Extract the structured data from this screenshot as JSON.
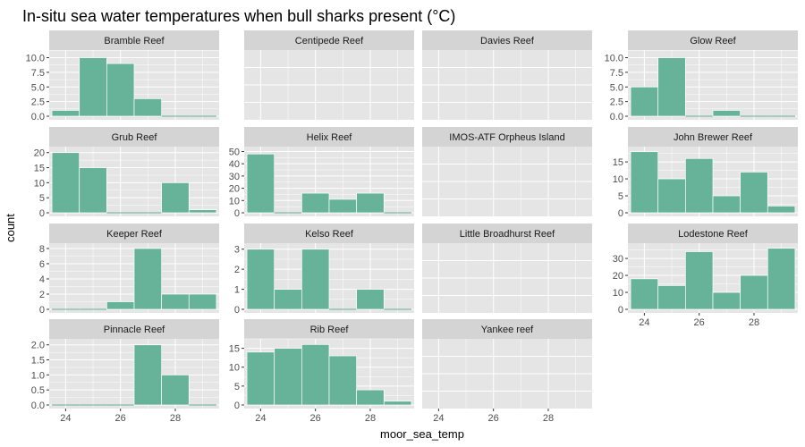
{
  "chart_data": {
    "type": "bar",
    "title": "In-situ sea water temperatures when bull sharks present (°C)",
    "xlabel": "moor_sea_temp",
    "ylabel": "count",
    "xlim": [
      23.4,
      29.6
    ],
    "x_ticks": [
      24,
      26,
      28
    ],
    "bin_edges": [
      23.5,
      24.5,
      25.5,
      26.5,
      27.5,
      28.5,
      29.5
    ],
    "grid": "on",
    "bar_color": "#66b39a",
    "panel_background": "#e5e5e5",
    "strip_background": "#d4d4d4",
    "panels": [
      {
        "name": "Bramble Reef",
        "ylim": [
          0,
          11.3
        ],
        "y_ticks": [
          "0.0",
          "2.5",
          "5.0",
          "7.5",
          "10.0"
        ],
        "values": [
          1,
          10,
          9,
          3,
          0,
          0
        ],
        "show_x_ticks": false
      },
      {
        "name": "Centipede Reef",
        "ylim": null,
        "y_ticks": [],
        "values": [],
        "show_x_ticks": false
      },
      {
        "name": "Davies Reef",
        "ylim": null,
        "y_ticks": [],
        "values": [],
        "show_x_ticks": false
      },
      {
        "name": "Glow Reef",
        "ylim": [
          0,
          11.3
        ],
        "y_ticks": [
          "0.0",
          "2.5",
          "5.0",
          "7.5",
          "10.0"
        ],
        "values": [
          5,
          10,
          0,
          1,
          0,
          0
        ],
        "show_x_ticks": false
      },
      {
        "name": "Grub Reef",
        "ylim": [
          0,
          22
        ],
        "y_ticks": [
          "0",
          "5",
          "10",
          "15",
          "20"
        ],
        "values": [
          20,
          15,
          0,
          0,
          10,
          1
        ],
        "show_x_ticks": false
      },
      {
        "name": "Helix Reef",
        "ylim": [
          0,
          54
        ],
        "y_ticks": [
          "0",
          "10",
          "20",
          "30",
          "40",
          "50"
        ],
        "values": [
          48,
          0,
          16,
          11,
          16,
          0
        ],
        "show_x_ticks": false
      },
      {
        "name": "IMOS-ATF Orpheus Island",
        "ylim": null,
        "y_ticks": [],
        "values": [],
        "show_x_ticks": false
      },
      {
        "name": "John Brewer Reef",
        "ylim": [
          0,
          19.5
        ],
        "y_ticks": [
          "0",
          "5",
          "10",
          "15"
        ],
        "values": [
          18,
          10,
          16,
          5,
          12,
          2
        ],
        "show_x_ticks": false
      },
      {
        "name": "Keeper Reef",
        "ylim": [
          0,
          8.7
        ],
        "y_ticks": [
          "0",
          "2",
          "4",
          "6",
          "8"
        ],
        "values": [
          0,
          0,
          1,
          8,
          2,
          2
        ],
        "show_x_ticks": false
      },
      {
        "name": "Kelso Reef",
        "ylim": [
          0,
          3.3
        ],
        "y_ticks": [
          "0",
          "1",
          "2",
          "3"
        ],
        "values": [
          3,
          1,
          3,
          0,
          1,
          0
        ],
        "show_x_ticks": false
      },
      {
        "name": "Little Broadhurst Reef",
        "ylim": null,
        "y_ticks": [],
        "values": [],
        "show_x_ticks": false
      },
      {
        "name": "Lodestone Reef",
        "ylim": [
          0,
          39
        ],
        "y_ticks": [
          "0",
          "10",
          "20",
          "30"
        ],
        "values": [
          18,
          14,
          34,
          10,
          20,
          36
        ],
        "show_x_ticks": true
      },
      {
        "name": "Pinnacle Reef",
        "ylim": [
          0,
          2.2
        ],
        "y_ticks": [
          "0.0",
          "0.5",
          "1.0",
          "1.5",
          "2.0"
        ],
        "values": [
          0,
          0,
          0,
          2,
          1,
          0
        ],
        "show_x_ticks": true
      },
      {
        "name": "Rib Reef",
        "ylim": [
          0,
          17.5
        ],
        "y_ticks": [
          "0",
          "5",
          "10",
          "15"
        ],
        "values": [
          14,
          15,
          16,
          13,
          4,
          1
        ],
        "show_x_ticks": true
      },
      {
        "name": "Yankee reef",
        "ylim": null,
        "y_ticks": [],
        "values": [],
        "show_x_ticks": true
      }
    ]
  }
}
